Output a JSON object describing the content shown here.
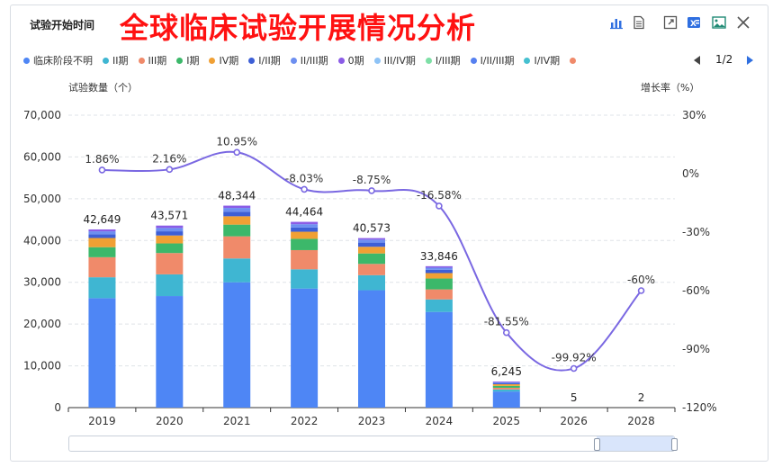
{
  "header": {
    "subtitle": "试验开始时间",
    "title": "全球临床试验开展情况分析",
    "tools": [
      "bar-chart-icon",
      "document-icon",
      "expand-icon",
      "excel-icon",
      "image-icon",
      "close-icon"
    ]
  },
  "legend": {
    "items": [
      {
        "label": "临床阶段不明",
        "color": "#4e86f5"
      },
      {
        "label": "II期",
        "color": "#3fb6d2"
      },
      {
        "label": "III期",
        "color": "#f08a6a"
      },
      {
        "label": "I期",
        "color": "#3cb86a"
      },
      {
        "label": "IV期",
        "color": "#f0a034"
      },
      {
        "label": "I/II期",
        "color": "#3d5fd6"
      },
      {
        "label": "II/III期",
        "color": "#6d8ff0"
      },
      {
        "label": "0期",
        "color": "#8b5ce6"
      },
      {
        "label": "III/IV期",
        "color": "#8ec3f6"
      },
      {
        "label": "I/III期",
        "color": "#7edfa6"
      },
      {
        "label": "I/II/III期",
        "color": "#5680f0"
      },
      {
        "label": "I/IV期",
        "color": "#45c0d0"
      },
      {
        "label": "",
        "color": "#f08a6a"
      }
    ],
    "page": "1/2"
  },
  "axes": {
    "left_title": "试验数量（个）",
    "right_title": "增长率（%）"
  },
  "chart_data": {
    "type": "bar",
    "title": "全球临床试验开展情况分析",
    "xlabel": "试验开始时间",
    "ylabel": "试验数量（个）",
    "y2label": "增长率（%）",
    "categories": [
      "2019",
      "2020",
      "2021",
      "2022",
      "2023",
      "2024",
      "2025",
      "2026",
      "2028"
    ],
    "totals": [
      42649,
      43571,
      48344,
      44464,
      40573,
      33846,
      6245,
      5,
      2
    ],
    "total_labels": [
      "42,649",
      "43,571",
      "48,344",
      "44,464",
      "40,573",
      "33,846",
      "6,245",
      "5",
      "2"
    ],
    "series": [
      {
        "name": "临床阶段不明",
        "color": "#4e86f5",
        "values": [
          26200,
          26700,
          30000,
          28500,
          28100,
          22900,
          3850,
          3,
          1
        ]
      },
      {
        "name": "II期",
        "color": "#3fb6d2",
        "values": [
          5000,
          5200,
          5700,
          4600,
          3600,
          3000,
          500,
          0,
          0
        ]
      },
      {
        "name": "III期",
        "color": "#f08a6a",
        "values": [
          4800,
          5100,
          5300,
          4600,
          2700,
          2400,
          400,
          0,
          0
        ]
      },
      {
        "name": "I期",
        "color": "#3cb86a",
        "values": [
          2400,
          2300,
          2800,
          2700,
          2500,
          2600,
          450,
          1,
          0
        ]
      },
      {
        "name": "IV期",
        "color": "#f0a034",
        "values": [
          2200,
          1900,
          2000,
          1700,
          1600,
          1300,
          400,
          0,
          0
        ]
      },
      {
        "name": "I/II期",
        "color": "#3d5fd6",
        "values": [
          900,
          1000,
          1100,
          1000,
          1000,
          800,
          250,
          0,
          0
        ]
      },
      {
        "name": "II/III期",
        "color": "#6d8ff0",
        "values": [
          700,
          800,
          900,
          800,
          700,
          500,
          200,
          1,
          1
        ]
      },
      {
        "name": "0期",
        "color": "#8b5ce6",
        "values": [
          449,
          571,
          544,
          564,
          373,
          346,
          195,
          0,
          0
        ]
      }
    ],
    "growth": {
      "name": "增长率（%）",
      "values": [
        1.86,
        2.16,
        10.95,
        -8.03,
        -8.75,
        -16.58,
        -81.55,
        -99.92,
        -60
      ],
      "labels": [
        "1.86%",
        "2.16%",
        "10.95%",
        "-8.03%",
        "-8.75%",
        "-16.58%",
        "-81.55%",
        "-99.92%",
        "-60%"
      ],
      "color": "#7a68e2"
    },
    "y_left": {
      "min": 0,
      "max": 70000,
      "ticks": [
        0,
        10000,
        20000,
        30000,
        40000,
        50000,
        60000,
        70000
      ],
      "tick_labels": [
        "0",
        "10,000",
        "20,000",
        "30,000",
        "40,000",
        "50,000",
        "60,000",
        "70,000"
      ]
    },
    "y_right": {
      "min": -120,
      "max": 30,
      "ticks": [
        -120,
        -90,
        -60,
        -30,
        0,
        30
      ],
      "tick_labels": [
        "-120%",
        "-90%",
        "-60%",
        "-30%",
        "0%",
        "30%"
      ]
    },
    "grid": true
  }
}
